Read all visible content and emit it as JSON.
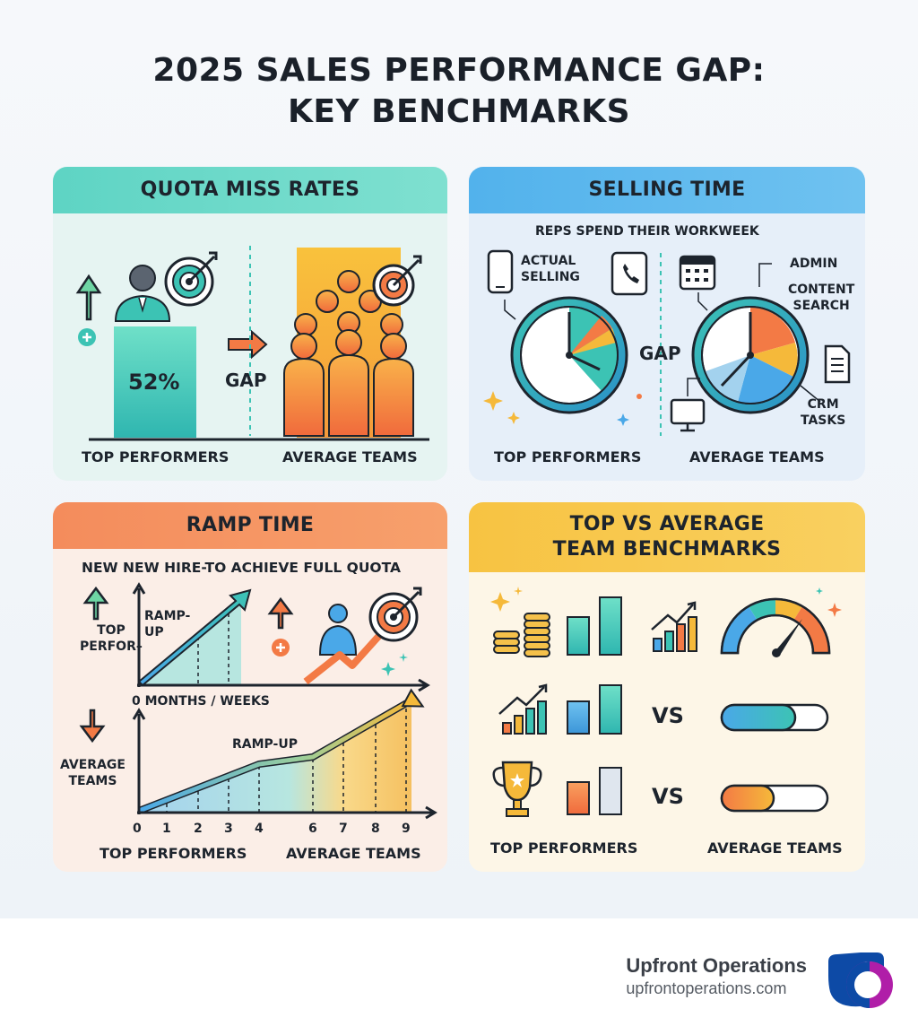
{
  "title": {
    "line1": "2025 SALES PERFORMANCE GAP:",
    "line2": "KEY BENCHMARKS"
  },
  "quota": {
    "heading": "QUOTA MISS RATES",
    "top_value": "52%",
    "gap_label": "GAP",
    "top_label": "TOP PERFORMERS",
    "avg_label": "AVERAGE TEAMS"
  },
  "selling": {
    "heading": "SELLING TIME",
    "subtitle": "REPS SPEND THEIR WORKWEEK",
    "actual_line1": "ACTUAL",
    "actual_line2": "SELLING",
    "gap_label": "GAP",
    "admin_label": "ADMIN",
    "content_line1": "CONTENT",
    "content_line2": "SEARCH",
    "crm_line1": "CRM",
    "crm_line2": "TASKS",
    "top_label": "TOP PERFORMERS",
    "avg_label": "AVERAGE TEAMS"
  },
  "ramp": {
    "heading": "RAMP TIME",
    "subtitle": "NEW NEW HIRE-TO ACHIEVE FULL QUOTA",
    "top_line1": "TOP",
    "top_line2": "PERFOR–",
    "rampup_line1": "RAMP-",
    "rampup_line2": "UP",
    "axis_label": "0  MONTHS / WEEKS",
    "avg_line1": "AVERAGE",
    "avg_line2": "TEAMS",
    "rampup2": "RAMP-UP",
    "ticks": [
      "0",
      "1",
      "2",
      "3",
      "4",
      "6",
      "7",
      "8",
      "9"
    ],
    "top_label": "TOP PERFORMERS",
    "avg_label": "AVERAGE TEAMS"
  },
  "bench": {
    "heading_line1": "TOP VS AVERAGE",
    "heading_line2": "TEAM BENCHMARKS",
    "vs1": "VS",
    "vs2": "VS",
    "top_label": "TOP PERFORMERS",
    "avg_label": "AVERAGE TEAMS"
  },
  "brand": {
    "name": "Upfront Operations",
    "url": "upfrontoperations.com"
  },
  "colors": {
    "teal": "#3cc3b4",
    "blue": "#4aa8e8",
    "orange": "#f37a45",
    "yellow": "#f5b93a",
    "navy": "#1d242d"
  }
}
